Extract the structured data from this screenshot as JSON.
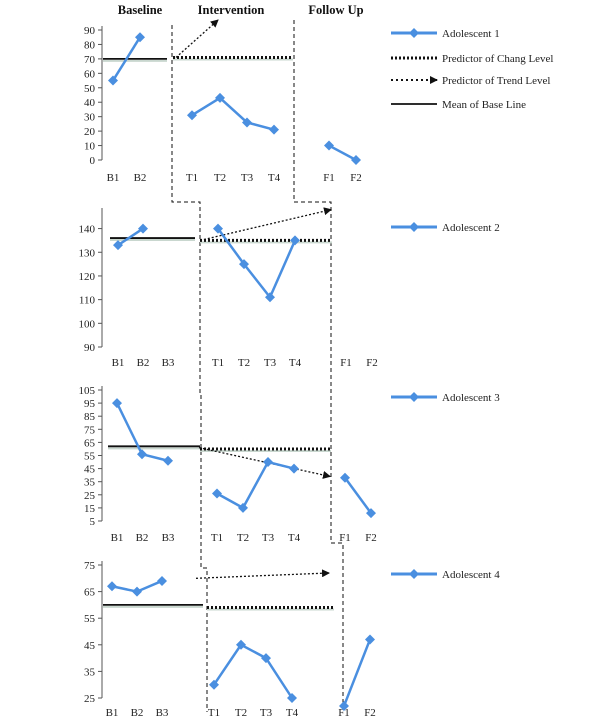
{
  "phases": [
    "Baseline",
    "Intervention",
    "Follow Up"
  ],
  "legend": {
    "predictor_change": "Predictor of Chang Level",
    "predictor_trend": "Predictor of Trend Level",
    "mean_baseline": "Mean of Base Line"
  },
  "colors": {
    "series": "#4a8fe0",
    "lines": "#111111"
  },
  "chart_data": [
    {
      "type": "line",
      "series": [
        {
          "name": "Adolescent 1",
          "x": [
            "B1",
            "B2",
            "T1",
            "T2",
            "T3",
            "T4",
            "F1",
            "F2"
          ],
          "values": [
            55,
            85,
            31,
            43,
            26,
            21,
            10,
            0
          ]
        }
      ],
      "categories": [
        "B1",
        "B2",
        "T1",
        "T2",
        "T3",
        "T4",
        "F1",
        "F2"
      ],
      "yticks": [
        0,
        10,
        20,
        30,
        40,
        50,
        60,
        70,
        80,
        90
      ],
      "ylim": [
        0,
        90
      ],
      "baseline_mean": 70,
      "change_level": 71,
      "trend": {
        "from": {
          "x": "T1",
          "y": 71
        },
        "to": {
          "x": "T2",
          "y": 100
        }
      }
    },
    {
      "type": "line",
      "series": [
        {
          "name": "Adolescent 2",
          "x": [
            "B1",
            "B2",
            "T1",
            "T2",
            "T3",
            "T4"
          ],
          "values": [
            133,
            140,
            140,
            125,
            111,
            135
          ]
        }
      ],
      "categories": [
        "B1",
        "B2",
        "B3",
        "T1",
        "T2",
        "T3",
        "T4",
        "F1",
        "F2"
      ],
      "yticks": [
        90,
        100,
        110,
        120,
        130,
        140
      ],
      "ylim": [
        90,
        147
      ],
      "baseline_mean": 136,
      "change_level": 135,
      "trend": {
        "from": {
          "x": "T1",
          "y": 135
        },
        "to": {
          "x": "F1",
          "y": 148
        }
      }
    },
    {
      "type": "line",
      "series": [
        {
          "name": "Adolescent 3",
          "x": [
            "B1",
            "B2",
            "B3",
            "T1",
            "T2",
            "T3",
            "T4",
            "F1",
            "F2"
          ],
          "values": [
            95,
            56,
            51,
            26,
            15,
            50,
            45,
            38,
            11
          ]
        }
      ],
      "categories": [
        "B1",
        "B2",
        "B3",
        "T1",
        "T2",
        "T3",
        "T4",
        "F1",
        "F2"
      ],
      "yticks": [
        5,
        15,
        25,
        35,
        45,
        55,
        65,
        75,
        85,
        95,
        105
      ],
      "ylim": [
        5,
        105
      ],
      "baseline_mean": 62,
      "change_level": 60,
      "trend": {
        "from": {
          "x": "T1",
          "y": 61
        },
        "to": {
          "x": "F1",
          "y": 39
        }
      }
    },
    {
      "type": "line",
      "series": [
        {
          "name": "Adolescent 4",
          "x": [
            "B1",
            "B2",
            "B3",
            "T1",
            "T2",
            "T3",
            "T4",
            "F1",
            "F2"
          ],
          "values": [
            67,
            65,
            69,
            30,
            45,
            40,
            25,
            22,
            47
          ]
        }
      ],
      "categories": [
        "B1",
        "B2",
        "B3",
        "T1",
        "T2",
        "T3",
        "T4",
        "F1",
        "F2"
      ],
      "yticks": [
        25,
        35,
        45,
        55,
        65,
        75
      ],
      "ylim": [
        25,
        75
      ],
      "baseline_mean": 60,
      "change_level": 59,
      "trend": {
        "from": {
          "x": "T1",
          "y": 70
        },
        "to": {
          "x": "F1",
          "y": 72
        }
      }
    }
  ]
}
